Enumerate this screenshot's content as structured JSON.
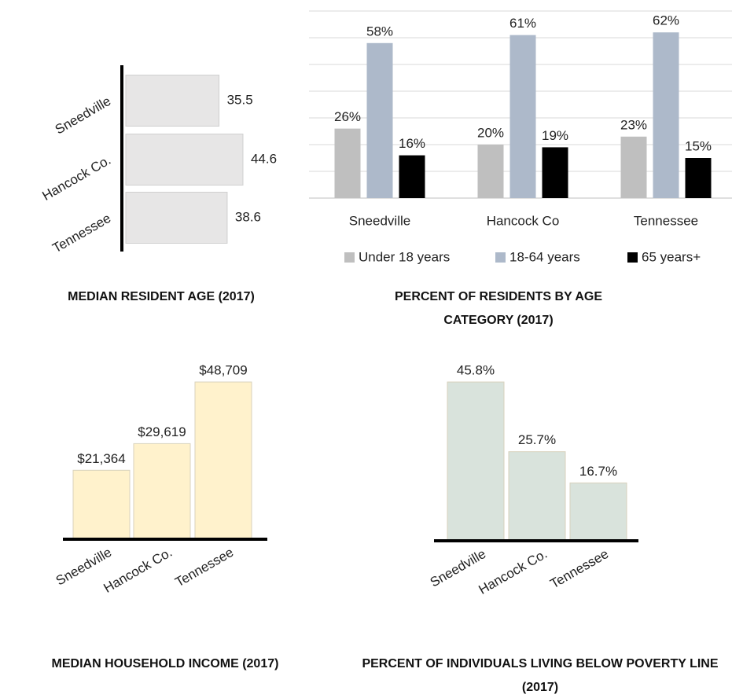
{
  "chart_data": [
    {
      "type": "hbar",
      "title": "MEDIAN RESIDENT AGE (2017)",
      "categories": [
        "Sneedville",
        "Hancock Co.",
        "Tennessee"
      ],
      "values": [
        35.5,
        44.6,
        38.6
      ],
      "color": "#e7e6e6"
    },
    {
      "type": "grouped",
      "title": "PERCENT OF RESIDENTS BY AGE CATEGORY (2017)",
      "categories": [
        "Sneedville",
        "Hancock Co",
        "Tennessee"
      ],
      "series": [
        {
          "name": "Under 18 years",
          "color": "#bfbfbf",
          "values": [
            26,
            20,
            23
          ],
          "value_labels": [
            "26%",
            "20%",
            "23%"
          ]
        },
        {
          "name": "18-64 years",
          "color": "#adb9ca",
          "values": [
            58,
            61,
            62
          ],
          "value_labels": [
            "58%",
            "61%",
            "62%"
          ]
        },
        {
          "name": "65 years+",
          "color": "#000000",
          "values": [
            16,
            19,
            15
          ],
          "value_labels": [
            "16%",
            "19%",
            "15%"
          ]
        }
      ],
      "ylim": [
        0,
        70
      ],
      "yticks": [
        0,
        10,
        20,
        30,
        40,
        50,
        60,
        70
      ],
      "grid": true,
      "legend": "bottom"
    },
    {
      "type": "bar",
      "title": "MEDIAN HOUSEHOLD INCOME (2017)",
      "categories": [
        "Sneedville",
        "Hancock Co.",
        "Tennessee"
      ],
      "values": [
        21364,
        29619,
        48709
      ],
      "value_labels": [
        "$21,364",
        "$29,619",
        "$48,709"
      ],
      "color": "#fff2cc"
    },
    {
      "type": "bar",
      "title": "PERCENT OF INDIVIDUALS LIVING BELOW POVERTY LINE (2017)",
      "categories": [
        "Sneedville",
        "Hancock Co.",
        "Tennessee"
      ],
      "values": [
        45.8,
        25.7,
        16.7
      ],
      "value_labels": [
        "45.8%",
        "25.7%",
        "16.7%"
      ],
      "color": "#d9e3dc"
    }
  ]
}
